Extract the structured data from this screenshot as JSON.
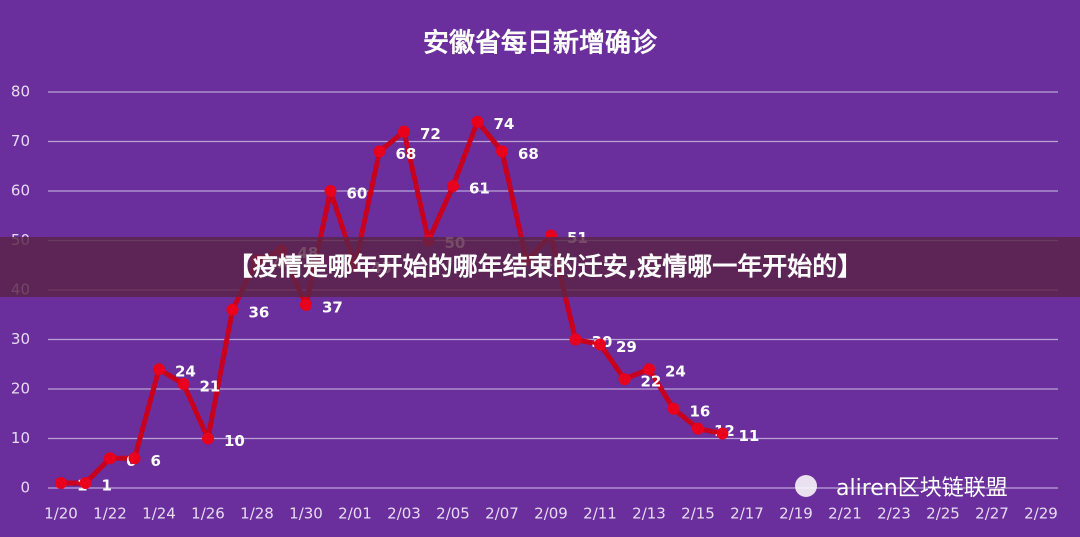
{
  "chart_data": {
    "type": "line",
    "title": "安徽省每日新增确诊",
    "categories": [
      "1/20",
      null,
      "1/22",
      null,
      "1/24",
      null,
      "1/26",
      null,
      "1/28",
      null,
      "1/30",
      null,
      "2/01",
      null,
      "2/03",
      null,
      "2/05",
      null,
      "2/07",
      null,
      "2/09",
      null,
      "2/11",
      null,
      "2/13",
      null,
      "2/15",
      null,
      "2/17",
      null,
      "2/19",
      null,
      "2/21",
      null,
      "2/23",
      null,
      "2/25",
      null,
      "2/27",
      null,
      "2/29"
    ],
    "series": [
      {
        "name": "新增确诊",
        "color": "#c8001e",
        "values": [
          1,
          1,
          6,
          6,
          24,
          21,
          10,
          36,
          46,
          48,
          37,
          60,
          45,
          68,
          72,
          50,
          61,
          74,
          68,
          46,
          51,
          30,
          29,
          22,
          24,
          16,
          12,
          11,
          null,
          null,
          null,
          null,
          null,
          null,
          null,
          null,
          null,
          null,
          null,
          null,
          null
        ]
      }
    ],
    "ylim": [
      0,
      80
    ],
    "yticks": [
      0,
      10,
      20,
      30,
      40,
      50,
      60,
      70,
      80
    ],
    "grid": true,
    "banner": "【疫情是哪年开始的哪年结束的迁安,疫情哪一年开始的】",
    "watermark": "aliren区块链联盟"
  }
}
